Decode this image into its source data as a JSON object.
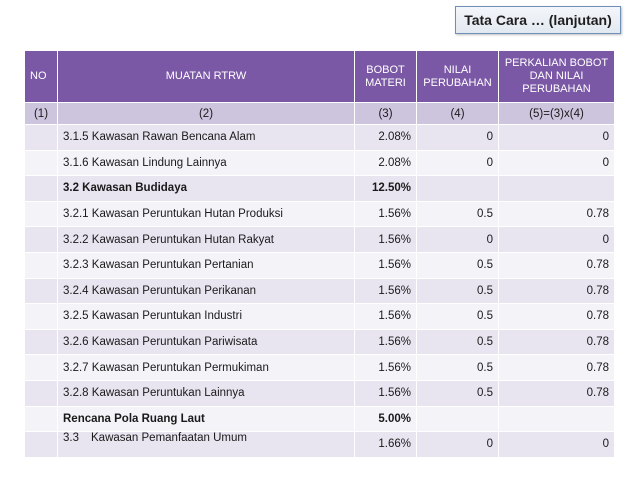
{
  "slide_title": "Tata Cara … (lanjutan)",
  "table": {
    "headers": {
      "no": "NO",
      "muatan": "MUATAN RTRW",
      "bobot": "BOBOT MATERI",
      "nilai": "NILAI PERUBAHAN",
      "perkalian": "PERKALIAN BOBOT DAN NILAI PERUBAHAN"
    },
    "column_numbers": [
      "(1)",
      "(2)",
      "(3)",
      "(4)",
      "(5)=(3)x(4)"
    ],
    "rows": [
      {
        "no": "",
        "name": "3.1.5 Kawasan Rawan Bencana Alam",
        "bobot": "2.08%",
        "nilai": "0",
        "perkalian": "0"
      },
      {
        "no": "",
        "name": "3.1.6 Kawasan Lindung Lainnya",
        "bobot": "2.08%",
        "nilai": "0",
        "perkalian": "0"
      },
      {
        "no": "",
        "name": "3.2 Kawasan Budidaya",
        "bobot": "12.50%",
        "nilai": "",
        "perkalian": ""
      },
      {
        "no": "",
        "name": "3.2.1 Kawasan Peruntukan Hutan Produksi",
        "bobot": "1.56%",
        "nilai": "0.5",
        "perkalian": "0.78"
      },
      {
        "no": "",
        "name": "3.2.2 Kawasan Peruntukan Hutan Rakyat",
        "bobot": "1.56%",
        "nilai": "0",
        "perkalian": "0"
      },
      {
        "no": "",
        "name": "3.2.3 Kawasan Peruntukan Pertanian",
        "bobot": "1.56%",
        "nilai": "0.5",
        "perkalian": "0.78"
      },
      {
        "no": "",
        "name": "3.2.4 Kawasan Peruntukan Perikanan",
        "bobot": "1.56%",
        "nilai": "0.5",
        "perkalian": "0.78"
      },
      {
        "no": "",
        "name": "3.2.5 Kawasan Peruntukan Industri",
        "bobot": "1.56%",
        "nilai": "0.5",
        "perkalian": "0.78"
      },
      {
        "no": "",
        "name": "3.2.6 Kawasan Peruntukan Pariwisata",
        "bobot": "1.56%",
        "nilai": "0.5",
        "perkalian": "0.78"
      },
      {
        "no": "",
        "name": "3.2.7 Kawasan Peruntukan Permukiman",
        "bobot": "1.56%",
        "nilai": "0.5",
        "perkalian": "0.78"
      },
      {
        "no": "",
        "name": "3.2.8 Kawasan Peruntukan Lainnya",
        "bobot": "1.56%",
        "nilai": "0.5",
        "perkalian": "0.78"
      },
      {
        "no": "",
        "name": "Rencana Pola Ruang Laut",
        "bobot": "5.00%",
        "nilai": "",
        "perkalian": ""
      }
    ],
    "last_row": {
      "no": "",
      "name_number": "3.3",
      "name_text": "Kawasan Pemanfaatan Umum",
      "bobot": "1.66%",
      "nilai": "0",
      "perkalian": "0"
    }
  }
}
